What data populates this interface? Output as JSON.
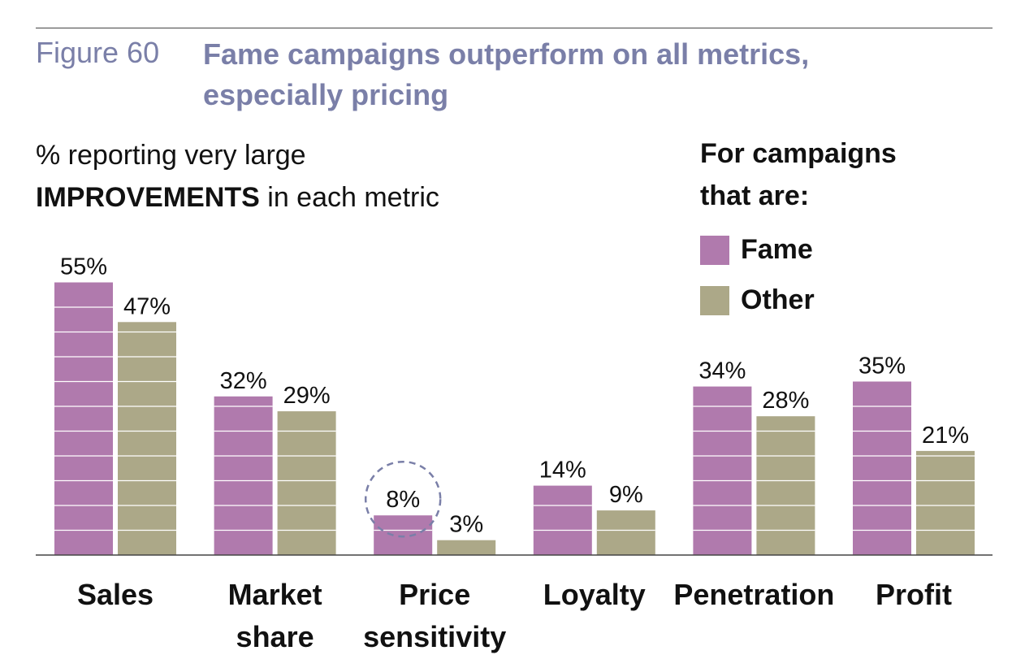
{
  "header": {
    "figure_label": "Figure 60",
    "title_line1": "Fame campaigns outperform on all metrics,",
    "title_line2": "especially pricing"
  },
  "subtitle": {
    "line1": "% reporting very large",
    "bold": "IMPROVEMENTS",
    "rest": " in each metric"
  },
  "legend": {
    "title_line1": "For campaigns",
    "title_line2": "that are:",
    "items": [
      {
        "label": "Fame",
        "color": "#b07aad"
      },
      {
        "label": "Other",
        "color": "#aca888"
      }
    ]
  },
  "chart_data": {
    "type": "bar",
    "title": "Fame campaigns outperform on all metrics, especially pricing",
    "ylabel": "% reporting very large IMPROVEMENTS in each metric",
    "xlabel": "",
    "ylim": [
      0,
      60
    ],
    "categories": [
      [
        "Sales"
      ],
      [
        "Market",
        "share"
      ],
      [
        "Price",
        "sensitivity"
      ],
      [
        "Loyalty"
      ],
      [
        "Penetration"
      ],
      [
        "Profit"
      ]
    ],
    "series": [
      {
        "name": "Fame",
        "color": "#b07aad",
        "values": [
          55,
          32,
          8,
          14,
          34,
          35
        ],
        "labels": [
          "55%",
          "32%",
          "8%",
          "14%",
          "34%",
          "35%"
        ]
      },
      {
        "name": "Other",
        "color": "#aca888",
        "values": [
          47,
          29,
          3,
          9,
          28,
          21
        ],
        "labels": [
          "47%",
          "29%",
          "3%",
          "9%",
          "28%",
          "21%"
        ]
      }
    ],
    "highlight": {
      "series": 0,
      "category": 2
    }
  }
}
